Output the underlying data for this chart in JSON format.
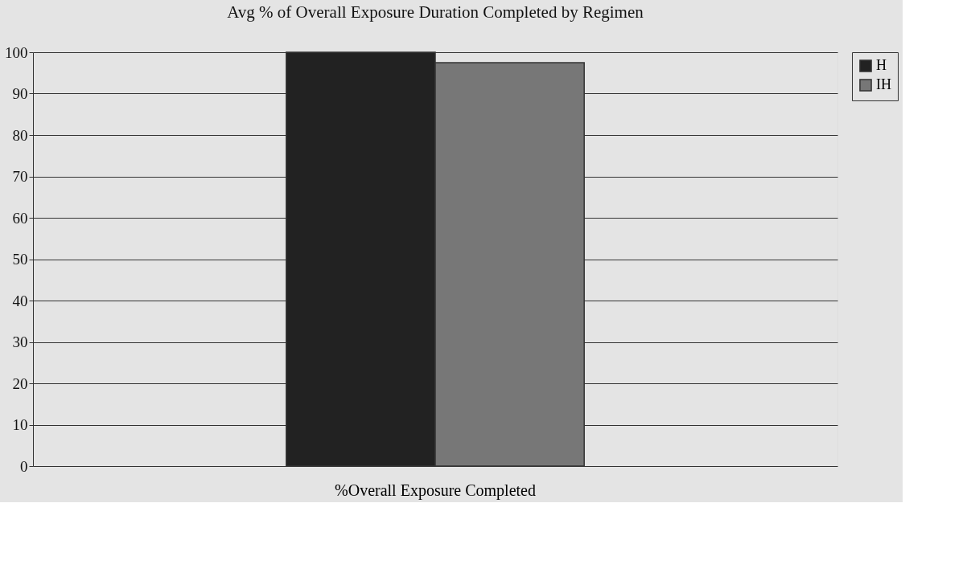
{
  "chart_data": {
    "type": "bar",
    "title": "Avg % of Overall Exposure Duration Completed by Regimen",
    "categories": [
      "%Overall Exposure Completed"
    ],
    "series": [
      {
        "name": "H",
        "color": "#222222",
        "values": [
          100
        ]
      },
      {
        "name": "IH",
        "color": "#777777",
        "values": [
          97.5
        ]
      }
    ],
    "ylim": [
      0,
      100
    ],
    "yticks": [
      0,
      10,
      20,
      30,
      40,
      50,
      60,
      70,
      80,
      90,
      100
    ],
    "grid": "y",
    "legend": "right"
  }
}
